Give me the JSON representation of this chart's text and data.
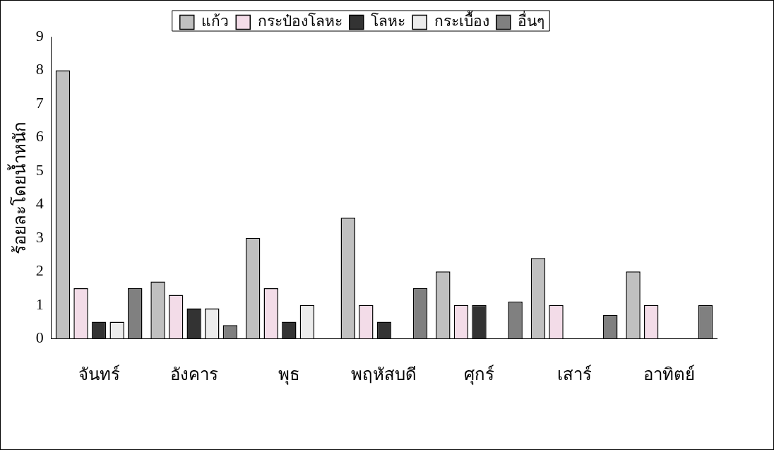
{
  "chart_data": {
    "type": "bar",
    "ylabel": "ร้อยละโดยน้ำหนัก",
    "categories": [
      "จันทร์",
      "อังคาร",
      "พุธ",
      "พฤหัสบดี",
      "ศุกร์",
      "เสาร์",
      "อาทิตย์"
    ],
    "series": [
      {
        "name": "แก้ว",
        "color": "#c0c0c0",
        "values": [
          8,
          1.7,
          3,
          3.6,
          2,
          2.4,
          2
        ]
      },
      {
        "name": "กระป๋องโลหะ",
        "color": "#f3dce8",
        "values": [
          1.5,
          1.3,
          1.5,
          1,
          1,
          1,
          1
        ]
      },
      {
        "name": "โลหะ",
        "color": "#333333",
        "values": [
          0.5,
          0.9,
          0.5,
          0.5,
          1,
          null,
          null
        ]
      },
      {
        "name": "กระเบื้อง",
        "color": "#ececec",
        "values": [
          0.5,
          0.9,
          1,
          null,
          null,
          null,
          null
        ]
      },
      {
        "name": "อื่นๆ",
        "color": "#808080",
        "values": [
          1.5,
          0.4,
          null,
          1.5,
          1.1,
          0.7,
          1
        ]
      }
    ],
    "ylim": [
      0,
      9
    ],
    "yticks": [
      0,
      1,
      2,
      3,
      4,
      5,
      6,
      7,
      8,
      9
    ],
    "grid": false,
    "legend": "top"
  }
}
